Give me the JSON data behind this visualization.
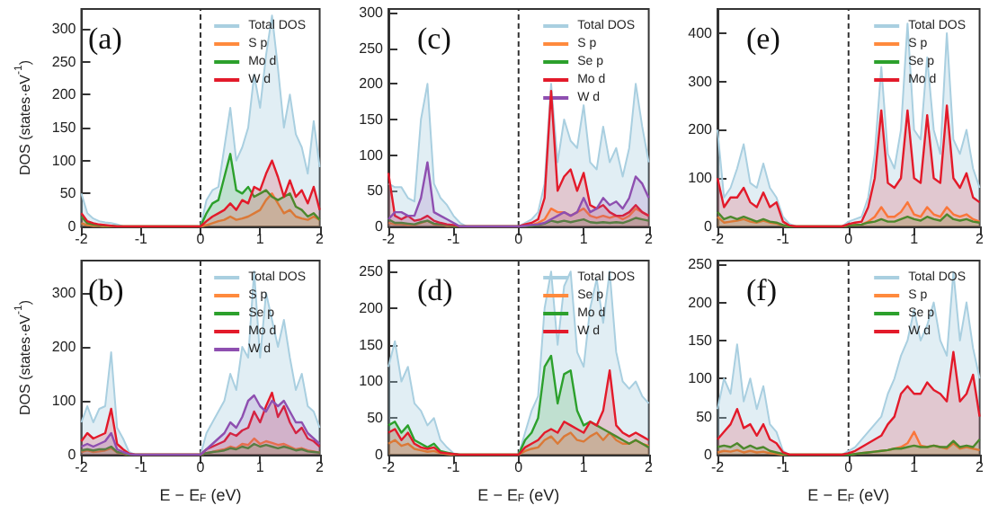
{
  "chart_data": [
    {
      "type": "area",
      "title": "(a)",
      "ylabel": "DOS (states·eV$^{-1}$)",
      "xlim": [
        -2,
        2
      ],
      "xticks": [
        -2,
        -1,
        0,
        1,
        2
      ],
      "ylim": [
        0,
        330
      ],
      "yticks": [
        0,
        50,
        100,
        150,
        200,
        250,
        300
      ],
      "legend": "top right",
      "marker": "none",
      "ref_lines": [
        {
          "axis": "x",
          "value": 0,
          "color": "#333333",
          "line_style": "dashed"
        }
      ],
      "x": [
        -2,
        -1.9,
        -1.8,
        -1.7,
        -1.6,
        -1.5,
        -1.4,
        -1.3,
        -1.2,
        -1.1,
        -1,
        -0.9,
        -0.8,
        -0.7,
        -0.6,
        -0.5,
        -0.4,
        -0.3,
        -0.2,
        -0.1,
        0,
        0.1,
        0.2,
        0.3,
        0.4,
        0.5,
        0.6,
        0.7,
        0.8,
        0.9,
        1,
        1.1,
        1.2,
        1.3,
        1.4,
        1.5,
        1.6,
        1.7,
        1.8,
        1.9,
        2
      ],
      "series": [
        {
          "name": "Total DOS",
          "color": "#a9cfe0",
          "values": [
            50,
            20,
            12,
            8,
            6,
            5,
            3,
            0,
            0,
            0,
            0,
            0,
            0,
            0,
            0,
            0,
            0,
            0,
            0,
            0,
            0,
            40,
            55,
            60,
            120,
            180,
            100,
            120,
            150,
            230,
            180,
            260,
            320,
            240,
            150,
            200,
            140,
            120,
            80,
            160,
            90
          ]
        },
        {
          "name": "S p",
          "color": "#ff8a3d",
          "values": [
            5,
            2,
            1,
            1,
            0,
            0,
            0,
            0,
            0,
            0,
            0,
            0,
            0,
            0,
            0,
            0,
            0,
            0,
            0,
            0,
            0,
            2,
            5,
            8,
            10,
            15,
            10,
            12,
            15,
            20,
            25,
            40,
            50,
            35,
            20,
            25,
            15,
            12,
            10,
            15,
            10
          ]
        },
        {
          "name": "Mo d",
          "color": "#2ca02c",
          "values": [
            15,
            5,
            3,
            2,
            1,
            1,
            0,
            0,
            0,
            0,
            0,
            0,
            0,
            0,
            0,
            0,
            0,
            0,
            0,
            0,
            0,
            20,
            35,
            40,
            75,
            110,
            55,
            50,
            60,
            45,
            50,
            55,
            45,
            40,
            45,
            50,
            30,
            25,
            15,
            20,
            10
          ]
        },
        {
          "name": "W d",
          "color": "#e31a2a",
          "values": [
            20,
            8,
            5,
            3,
            2,
            1,
            0,
            0,
            0,
            0,
            0,
            0,
            0,
            0,
            0,
            0,
            0,
            0,
            0,
            0,
            0,
            8,
            15,
            20,
            25,
            35,
            25,
            40,
            35,
            60,
            55,
            80,
            100,
            75,
            45,
            70,
            45,
            55,
            35,
            60,
            25
          ]
        }
      ]
    },
    {
      "type": "area",
      "title": "(c)",
      "xlim": [
        -2,
        2
      ],
      "xticks": [
        -2,
        -1,
        0,
        1,
        2
      ],
      "ylim": [
        0,
        305
      ],
      "yticks": [
        0,
        50,
        100,
        150,
        200,
        250,
        300
      ],
      "legend": "top right",
      "marker": "none",
      "ref_lines": [
        {
          "axis": "x",
          "value": 0,
          "color": "#333333",
          "line_style": "dashed"
        }
      ],
      "x": [
        -2,
        -1.9,
        -1.8,
        -1.7,
        -1.6,
        -1.5,
        -1.4,
        -1.3,
        -1.2,
        -1.1,
        -1,
        -0.9,
        -0.8,
        -0.7,
        -0.6,
        -0.5,
        -0.4,
        -0.3,
        -0.2,
        -0.1,
        0,
        0.1,
        0.2,
        0.3,
        0.4,
        0.5,
        0.6,
        0.7,
        0.8,
        0.9,
        1,
        1.1,
        1.2,
        1.3,
        1.4,
        1.5,
        1.6,
        1.7,
        1.8,
        1.9,
        2
      ],
      "series": [
        {
          "name": "Total DOS",
          "color": "#a9cfe0",
          "values": [
            60,
            55,
            55,
            40,
            35,
            150,
            200,
            60,
            40,
            30,
            15,
            5,
            0,
            0,
            0,
            0,
            0,
            0,
            0,
            0,
            0,
            5,
            10,
            20,
            60,
            200,
            90,
            150,
            120,
            110,
            170,
            90,
            80,
            140,
            90,
            110,
            70,
            110,
            200,
            140,
            90
          ]
        },
        {
          "name": "S p",
          "color": "#ff8a3d",
          "values": [
            5,
            3,
            3,
            2,
            2,
            5,
            8,
            3,
            2,
            1,
            1,
            0,
            0,
            0,
            0,
            0,
            0,
            0,
            0,
            0,
            0,
            1,
            2,
            5,
            10,
            25,
            20,
            20,
            15,
            20,
            25,
            15,
            12,
            15,
            12,
            15,
            10,
            15,
            25,
            20,
            15
          ]
        },
        {
          "name": "Se p",
          "color": "#2ca02c",
          "values": [
            10,
            5,
            5,
            4,
            3,
            6,
            8,
            4,
            3,
            2,
            1,
            0,
            0,
            0,
            0,
            0,
            0,
            0,
            0,
            0,
            0,
            1,
            1,
            2,
            4,
            8,
            6,
            8,
            6,
            8,
            10,
            6,
            5,
            6,
            5,
            6,
            5,
            8,
            12,
            10,
            8
          ]
        },
        {
          "name": "Mo d",
          "color": "#e31a2a",
          "values": [
            75,
            15,
            10,
            15,
            8,
            10,
            15,
            8,
            5,
            3,
            2,
            0,
            0,
            0,
            0,
            0,
            0,
            0,
            0,
            0,
            0,
            3,
            5,
            10,
            40,
            190,
            50,
            70,
            80,
            50,
            75,
            30,
            25,
            30,
            20,
            15,
            15,
            20,
            30,
            20,
            15
          ]
        },
        {
          "name": "W d",
          "color": "#8e4fb0",
          "values": [
            10,
            20,
            20,
            15,
            15,
            40,
            90,
            20,
            15,
            10,
            5,
            0,
            0,
            0,
            0,
            0,
            0,
            0,
            0,
            0,
            0,
            1,
            2,
            3,
            5,
            10,
            15,
            20,
            15,
            20,
            40,
            20,
            25,
            40,
            30,
            35,
            25,
            40,
            70,
            60,
            40
          ]
        }
      ]
    },
    {
      "type": "area",
      "title": "(e)",
      "xlim": [
        -2,
        2
      ],
      "xticks": [
        -2,
        -1,
        0,
        1,
        2
      ],
      "ylim": [
        0,
        450
      ],
      "yticks": [
        0,
        100,
        200,
        300,
        400
      ],
      "legend": "top right",
      "marker": "none",
      "ref_lines": [
        {
          "axis": "x",
          "value": 0,
          "color": "#333333",
          "line_style": "dashed"
        }
      ],
      "x": [
        -2,
        -1.9,
        -1.8,
        -1.7,
        -1.6,
        -1.5,
        -1.4,
        -1.3,
        -1.2,
        -1.1,
        -1,
        -0.9,
        -0.8,
        -0.7,
        -0.6,
        -0.5,
        -0.4,
        -0.3,
        -0.2,
        -0.1,
        0,
        0.1,
        0.2,
        0.3,
        0.4,
        0.5,
        0.6,
        0.7,
        0.8,
        0.9,
        1,
        1.1,
        1.2,
        1.3,
        1.4,
        1.5,
        1.6,
        1.7,
        1.8,
        1.9,
        2
      ],
      "series": [
        {
          "name": "Total DOS",
          "color": "#a9cfe0",
          "values": [
            200,
            60,
            80,
            120,
            170,
            90,
            80,
            130,
            80,
            60,
            20,
            5,
            0,
            0,
            0,
            0,
            0,
            0,
            0,
            0,
            10,
            15,
            20,
            60,
            150,
            330,
            150,
            120,
            200,
            420,
            200,
            180,
            350,
            200,
            150,
            400,
            180,
            150,
            200,
            120,
            80
          ]
        },
        {
          "name": "S p",
          "color": "#ff8a3d",
          "values": [
            20,
            8,
            10,
            12,
            15,
            10,
            8,
            12,
            8,
            6,
            2,
            0,
            0,
            0,
            0,
            0,
            0,
            0,
            0,
            0,
            2,
            3,
            4,
            10,
            20,
            40,
            20,
            20,
            30,
            50,
            25,
            20,
            40,
            25,
            20,
            40,
            25,
            20,
            25,
            15,
            10
          ]
        },
        {
          "name": "Se p",
          "color": "#2ca02c",
          "values": [
            30,
            15,
            20,
            15,
            20,
            15,
            10,
            15,
            10,
            8,
            3,
            0,
            0,
            0,
            0,
            0,
            0,
            0,
            0,
            0,
            2,
            3,
            4,
            8,
            10,
            15,
            10,
            10,
            15,
            20,
            15,
            12,
            20,
            15,
            12,
            25,
            15,
            12,
            15,
            10,
            8
          ]
        },
        {
          "name": "Mo d",
          "color": "#e31a2a",
          "values": [
            100,
            40,
            60,
            60,
            80,
            50,
            40,
            70,
            40,
            50,
            10,
            2,
            0,
            0,
            0,
            0,
            0,
            0,
            0,
            0,
            5,
            8,
            10,
            40,
            100,
            240,
            90,
            80,
            100,
            240,
            100,
            90,
            230,
            100,
            90,
            250,
            100,
            80,
            110,
            60,
            50
          ]
        }
      ]
    },
    {
      "type": "area",
      "title": "(b)",
      "ylabel": "DOS (states·eV$^{-1}$)",
      "xlabel": "E − E$_{F}$ (eV)",
      "xlim": [
        -2,
        2
      ],
      "xticks": [
        -2,
        -1,
        0,
        1,
        2
      ],
      "ylim": [
        0,
        360
      ],
      "yticks": [
        0,
        100,
        200,
        300
      ],
      "legend": "top right",
      "marker": "none",
      "ref_lines": [
        {
          "axis": "x",
          "value": 0,
          "color": "#333333",
          "line_style": "dashed"
        }
      ],
      "x": [
        -2,
        -1.9,
        -1.8,
        -1.7,
        -1.6,
        -1.5,
        -1.4,
        -1.3,
        -1.2,
        -1.1,
        -1,
        -0.9,
        -0.8,
        -0.7,
        -0.6,
        -0.5,
        -0.4,
        -0.3,
        -0.2,
        -0.1,
        0,
        0.1,
        0.2,
        0.3,
        0.4,
        0.5,
        0.6,
        0.7,
        0.8,
        0.9,
        1,
        1.1,
        1.2,
        1.3,
        1.4,
        1.5,
        1.6,
        1.7,
        1.8,
        1.9,
        2
      ],
      "series": [
        {
          "name": "Total DOS",
          "color": "#a9cfe0",
          "values": [
            60,
            90,
            60,
            85,
            90,
            190,
            50,
            30,
            5,
            0,
            0,
            0,
            0,
            0,
            0,
            0,
            0,
            0,
            0,
            0,
            0,
            40,
            60,
            80,
            100,
            150,
            120,
            200,
            180,
            340,
            180,
            300,
            250,
            200,
            250,
            180,
            120,
            150,
            90,
            80,
            50
          ]
        },
        {
          "name": "S p",
          "color": "#ff8a3d",
          "values": [
            5,
            8,
            5,
            6,
            8,
            12,
            4,
            2,
            0,
            0,
            0,
            0,
            0,
            0,
            0,
            0,
            0,
            0,
            0,
            0,
            0,
            3,
            5,
            8,
            10,
            15,
            12,
            20,
            18,
            30,
            20,
            25,
            22,
            18,
            20,
            15,
            10,
            12,
            8,
            6,
            4
          ]
        },
        {
          "name": "Se p",
          "color": "#2ca02c",
          "values": [
            8,
            10,
            8,
            10,
            10,
            15,
            5,
            3,
            0,
            0,
            0,
            0,
            0,
            0,
            0,
            0,
            0,
            0,
            0,
            0,
            0,
            3,
            5,
            6,
            8,
            12,
            10,
            15,
            12,
            20,
            15,
            18,
            15,
            12,
            15,
            12,
            8,
            10,
            6,
            5,
            4
          ]
        },
        {
          "name": "Mo d",
          "color": "#e31a2a",
          "values": [
            25,
            40,
            30,
            35,
            40,
            85,
            20,
            10,
            2,
            0,
            0,
            0,
            0,
            0,
            0,
            0,
            0,
            0,
            0,
            0,
            0,
            10,
            15,
            20,
            25,
            40,
            35,
            45,
            50,
            80,
            60,
            90,
            115,
            70,
            90,
            60,
            40,
            50,
            30,
            25,
            15
          ]
        },
        {
          "name": "W d",
          "color": "#8e4fb0",
          "values": [
            15,
            20,
            15,
            20,
            25,
            40,
            10,
            5,
            1,
            0,
            0,
            0,
            0,
            0,
            0,
            0,
            0,
            0,
            0,
            0,
            0,
            10,
            20,
            30,
            40,
            60,
            50,
            70,
            100,
            110,
            90,
            80,
            100,
            90,
            100,
            80,
            60,
            60,
            40,
            30,
            20
          ]
        }
      ]
    },
    {
      "type": "area",
      "title": "(d)",
      "xlabel": "E − E$_{F}$ (eV)",
      "xlim": [
        -2,
        2
      ],
      "xticks": [
        -2,
        -1,
        0,
        1,
        2
      ],
      "ylim": [
        0,
        265
      ],
      "yticks": [
        0,
        50,
        100,
        150,
        200,
        250
      ],
      "legend": "top right",
      "marker": "none",
      "ref_lines": [
        {
          "axis": "x",
          "value": 0,
          "color": "#333333",
          "line_style": "dashed"
        }
      ],
      "x": [
        -2,
        -1.9,
        -1.8,
        -1.7,
        -1.6,
        -1.5,
        -1.4,
        -1.3,
        -1.2,
        -1.1,
        -1,
        -0.9,
        -0.8,
        -0.7,
        -0.6,
        -0.5,
        -0.4,
        -0.3,
        -0.2,
        -0.1,
        0,
        0.1,
        0.2,
        0.3,
        0.4,
        0.5,
        0.6,
        0.7,
        0.8,
        0.9,
        1,
        1.1,
        1.2,
        1.3,
        1.4,
        1.5,
        1.6,
        1.7,
        1.8,
        1.9,
        2
      ],
      "series": [
        {
          "name": "Total DOS",
          "color": "#a9cfe0",
          "values": [
            120,
            155,
            100,
            120,
            70,
            60,
            40,
            50,
            20,
            10,
            2,
            0,
            0,
            0,
            0,
            0,
            0,
            0,
            0,
            0,
            0,
            30,
            60,
            80,
            200,
            250,
            150,
            230,
            250,
            140,
            120,
            200,
            240,
            180,
            250,
            140,
            100,
            90,
            100,
            80,
            70
          ]
        },
        {
          "name": "Se p",
          "color": "#ff8a3d",
          "values": [
            15,
            20,
            12,
            15,
            8,
            6,
            4,
            5,
            2,
            1,
            0,
            0,
            0,
            0,
            0,
            0,
            0,
            0,
            0,
            0,
            0,
            5,
            8,
            10,
            20,
            25,
            15,
            25,
            30,
            20,
            18,
            25,
            30,
            20,
            30,
            20,
            15,
            15,
            20,
            15,
            12
          ]
        },
        {
          "name": "Mo d",
          "color": "#2ca02c",
          "values": [
            40,
            45,
            30,
            40,
            20,
            15,
            10,
            15,
            5,
            3,
            1,
            0,
            0,
            0,
            0,
            0,
            0,
            0,
            0,
            0,
            0,
            20,
            30,
            50,
            120,
            135,
            70,
            110,
            115,
            60,
            40,
            45,
            40,
            35,
            30,
            25,
            20,
            15,
            20,
            15,
            10
          ]
        },
        {
          "name": "W d",
          "color": "#e31a2a",
          "values": [
            30,
            35,
            20,
            30,
            15,
            10,
            8,
            10,
            3,
            2,
            1,
            0,
            0,
            0,
            0,
            0,
            0,
            0,
            0,
            0,
            0,
            10,
            15,
            20,
            30,
            35,
            30,
            45,
            40,
            35,
            30,
            45,
            40,
            60,
            115,
            40,
            30,
            25,
            30,
            25,
            20
          ]
        }
      ]
    },
    {
      "type": "area",
      "title": "(f)",
      "xlabel": "E − E$_{F}$ (eV)",
      "xlim": [
        -2,
        2
      ],
      "xticks": [
        -2,
        -1,
        0,
        1,
        2
      ],
      "ylim": [
        0,
        255
      ],
      "yticks": [
        0,
        50,
        100,
        150,
        200,
        250
      ],
      "legend": "top right",
      "marker": "none",
      "ref_lines": [
        {
          "axis": "x",
          "value": 0,
          "color": "#333333",
          "line_style": "dashed"
        }
      ],
      "x": [
        -2,
        -1.9,
        -1.8,
        -1.7,
        -1.6,
        -1.5,
        -1.4,
        -1.3,
        -1.2,
        -1.1,
        -1,
        -0.9,
        -0.8,
        -0.7,
        -0.6,
        -0.5,
        -0.4,
        -0.3,
        -0.2,
        -0.1,
        0,
        0.1,
        0.2,
        0.3,
        0.4,
        0.5,
        0.6,
        0.7,
        0.8,
        0.9,
        1,
        1.1,
        1.2,
        1.3,
        1.4,
        1.5,
        1.6,
        1.7,
        1.8,
        1.9,
        2
      ],
      "series": [
        {
          "name": "Total DOS",
          "color": "#a9cfe0",
          "values": [
            60,
            100,
            80,
            145,
            70,
            100,
            60,
            90,
            40,
            30,
            5,
            0,
            0,
            0,
            0,
            0,
            0,
            0,
            0,
            0,
            5,
            10,
            20,
            30,
            40,
            50,
            80,
            100,
            130,
            150,
            190,
            150,
            170,
            200,
            150,
            130,
            240,
            150,
            200,
            140,
            100
          ]
        },
        {
          "name": "S p",
          "color": "#ff8a3d",
          "values": [
            3,
            5,
            4,
            6,
            3,
            5,
            3,
            4,
            2,
            1,
            0,
            0,
            0,
            0,
            0,
            0,
            0,
            0,
            0,
            0,
            0,
            1,
            2,
            3,
            4,
            5,
            6,
            8,
            10,
            15,
            30,
            12,
            10,
            12,
            10,
            8,
            15,
            8,
            10,
            8,
            6
          ]
        },
        {
          "name": "Se p",
          "color": "#2ca02c",
          "values": [
            10,
            12,
            10,
            15,
            8,
            12,
            8,
            10,
            5,
            3,
            1,
            0,
            0,
            0,
            0,
            0,
            0,
            0,
            0,
            0,
            0,
            1,
            2,
            3,
            4,
            5,
            6,
            8,
            8,
            10,
            12,
            10,
            10,
            12,
            10,
            10,
            18,
            10,
            12,
            10,
            20
          ]
        },
        {
          "name": "W d",
          "color": "#e31a2a",
          "values": [
            20,
            30,
            40,
            60,
            35,
            40,
            25,
            40,
            20,
            15,
            3,
            0,
            0,
            0,
            0,
            0,
            0,
            0,
            0,
            0,
            2,
            5,
            10,
            15,
            20,
            25,
            40,
            50,
            80,
            90,
            80,
            80,
            95,
            85,
            80,
            70,
            135,
            70,
            80,
            105,
            50
          ]
        }
      ]
    }
  ]
}
